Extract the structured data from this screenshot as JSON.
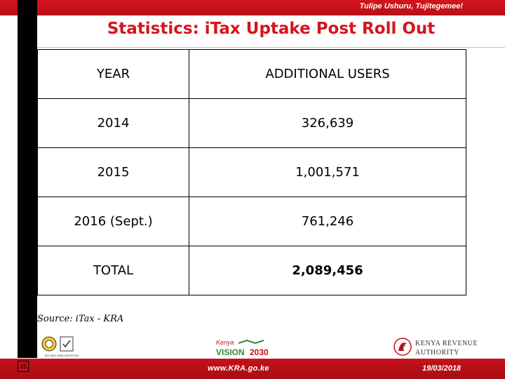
{
  "header": {
    "motto": "Tulipe Ushuru, Tujitegemee!"
  },
  "slide": {
    "title": "Statistics: iTax Uptake Post Roll Out",
    "source": "Source: iTax - KRA"
  },
  "table": {
    "columns": [
      "YEAR",
      "ADDITIONAL USERS"
    ],
    "rows": [
      {
        "year": "2014",
        "users": "326,639"
      },
      {
        "year": "2015",
        "users": "1,001,571"
      },
      {
        "year": "2016 (Sept.)",
        "users": "761,246"
      }
    ],
    "total": {
      "label": "TOTAL",
      "value": "2,089,456"
    }
  },
  "footer": {
    "slide_number": "15",
    "website": "www.KRA.go.ke",
    "date": "19/03/2018",
    "vision_logo_text": {
      "prefix": "Kenya",
      "word": "VISION",
      "year": "2030"
    },
    "kra_logo_text": [
      "KENYA REVENUE",
      "AUTHORITY"
    ],
    "iso_logo_text": "ISO 9001:2008 CERTIFIED"
  },
  "colors": {
    "brand_red": "#d4141c",
    "bar_red": "#c5121a",
    "stripe": "#000000",
    "vision_green": "#2e8b3a"
  }
}
